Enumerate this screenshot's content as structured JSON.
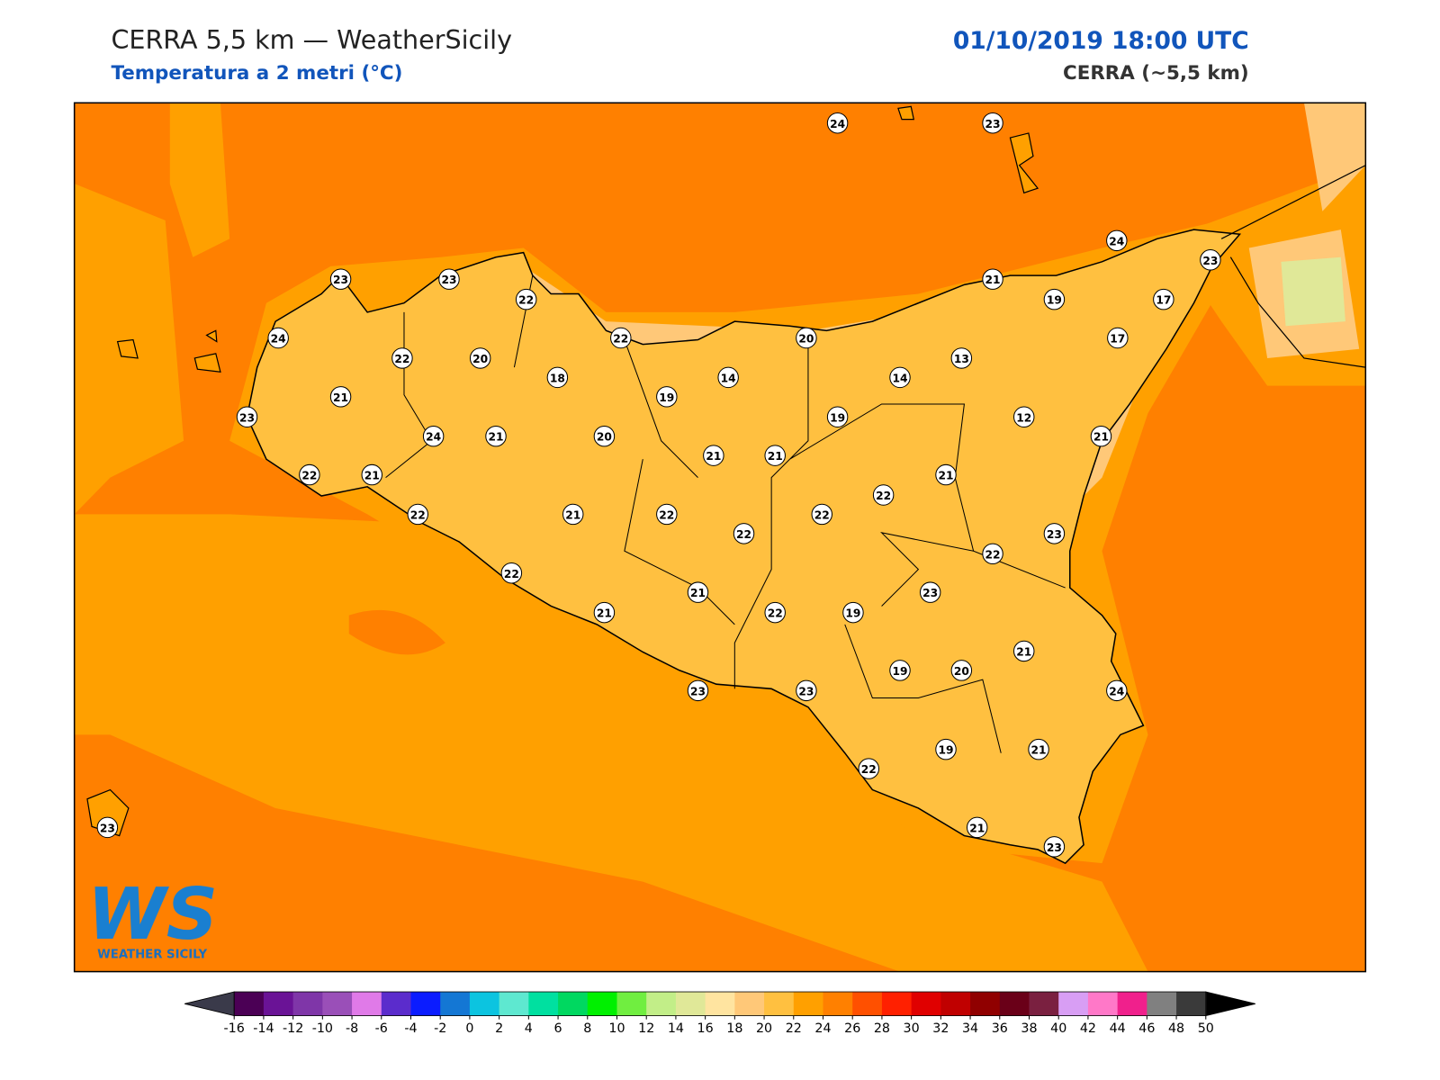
{
  "header": {
    "title": "CERRA 5,5 km — WeatherSicily",
    "subtitle": "Temperatura a 2 metri (°C)",
    "datetime": "01/10/2019 18:00 UTC",
    "model": "CERRA (~5,5 km)"
  },
  "stations": [
    24,
    23,
    24,
    23,
    23,
    23,
    22,
    21,
    19,
    17,
    24,
    22,
    20,
    22,
    20,
    17,
    13,
    18,
    14,
    14,
    21,
    19,
    23,
    19,
    12,
    24,
    21,
    20,
    21,
    21,
    21,
    22,
    21,
    21,
    22,
    22,
    21,
    22,
    22,
    22,
    23,
    22,
    22,
    21,
    23,
    21,
    22,
    19,
    21,
    19,
    20,
    23,
    23,
    24,
    19,
    21,
    22,
    23,
    21,
    23
  ],
  "colorbar": {
    "ticks": [
      -16,
      -14,
      -12,
      -10,
      -8,
      -6,
      -4,
      -2,
      0,
      2,
      4,
      6,
      8,
      10,
      12,
      14,
      16,
      18,
      20,
      22,
      24,
      26,
      28,
      30,
      32,
      34,
      36,
      38,
      40,
      42,
      44,
      46,
      48,
      50
    ],
    "colors": [
      "#4b0055",
      "#6a1396",
      "#7f36a8",
      "#9a4fb8",
      "#e07ae8",
      "#5b2ccc",
      "#0b1cff",
      "#1477d4",
      "#0cc4e0",
      "#5ee8d0",
      "#00e0a0",
      "#00d860",
      "#00f000",
      "#70ee40",
      "#c2ee88",
      "#e0e898",
      "#ffe4a0",
      "#ffc878",
      "#ffc040",
      "#ffa000",
      "#ff8000",
      "#ff5000",
      "#ff2000",
      "#e00000",
      "#c00000",
      "#900000",
      "#6a0018",
      "#7a2040",
      "#d89ef4",
      "#ff78c8",
      "#f0208c",
      "#808080",
      "#3a3a3a"
    ],
    "under_color": "#3a3a4a",
    "over_color": "#000000"
  },
  "logo": {
    "mark": "WS",
    "name": "WEATHER SICILY"
  }
}
